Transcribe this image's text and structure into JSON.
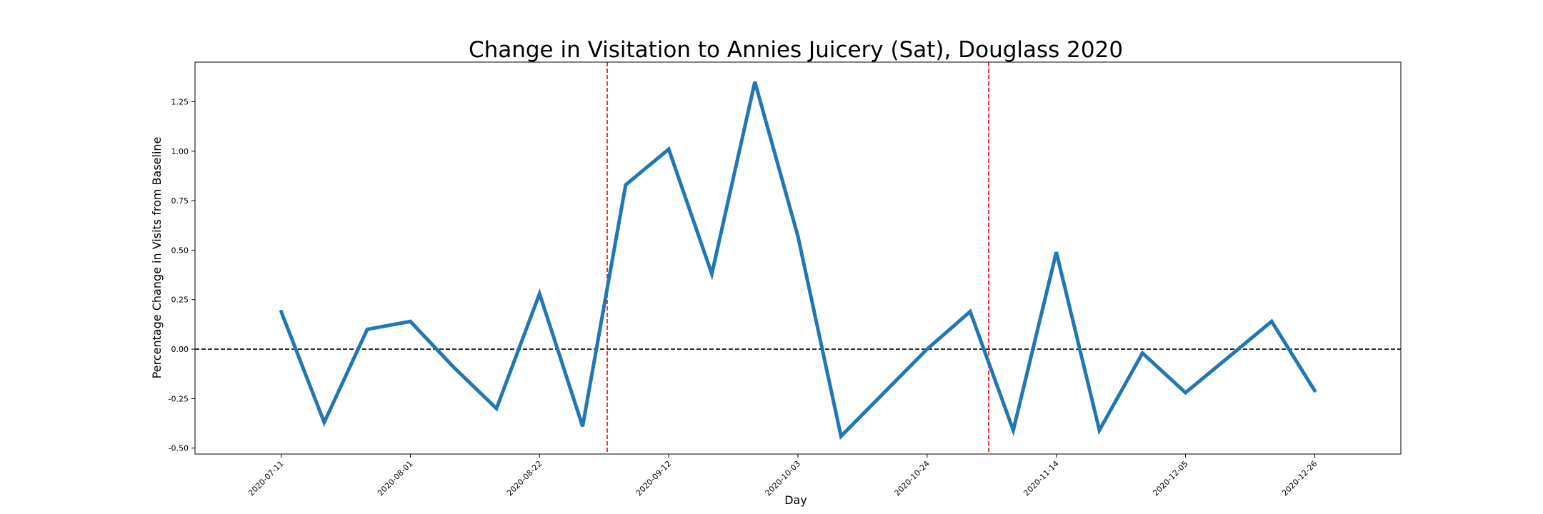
{
  "chart_data": {
    "type": "line",
    "title": "Change in Visitation to Annies Juicery (Sat), Douglass 2020",
    "xlabel": "Day",
    "ylabel": "Percentage Change in Visits from Baseline",
    "x": [
      "2020-07-11",
      "2020-07-18",
      "2020-07-25",
      "2020-08-01",
      "2020-08-08",
      "2020-08-15",
      "2020-08-22",
      "2020-08-29",
      "2020-09-05",
      "2020-09-12",
      "2020-09-19",
      "2020-09-26",
      "2020-10-03",
      "2020-10-10",
      "2020-10-17",
      "2020-10-24",
      "2020-10-31",
      "2020-11-07",
      "2020-11-14",
      "2020-11-21",
      "2020-11-28",
      "2020-12-05",
      "2020-12-12",
      "2020-12-19",
      "2020-12-26"
    ],
    "series": [
      {
        "values": [
          0.19,
          -0.37,
          0.1,
          0.14,
          -0.09,
          -0.3,
          0.28,
          -0.39,
          0.83,
          1.01,
          0.38,
          1.35,
          0.57,
          -0.44,
          -0.22,
          0.0,
          0.19,
          -0.41,
          0.49,
          -0.41,
          -0.02,
          -0.22,
          -0.04,
          0.14,
          -0.21
        ]
      }
    ],
    "xticks": [
      "2020-07-11",
      "2020-08-01",
      "2020-08-22",
      "2020-09-12",
      "2020-10-03",
      "2020-10-24",
      "2020-11-14",
      "2020-12-05",
      "2020-12-26"
    ],
    "yticks": [
      "-0.50",
      "-0.25",
      "0.00",
      "0.25",
      "0.50",
      "0.75",
      "1.00",
      "1.25"
    ],
    "ylim": [
      -0.53,
      1.45
    ],
    "xlim": [
      "2020-06-27",
      "2021-01-09"
    ],
    "reference_lines": {
      "horizontal": {
        "y": 0.0,
        "style": "dashed",
        "color": "#000000"
      },
      "vertical": [
        {
          "x": "2020-09-02",
          "style": "dashed",
          "color": "#ff0000"
        },
        {
          "x": "2020-11-03",
          "style": "dashed",
          "color": "#ff0000"
        }
      ]
    },
    "line_color": "#1f77b4",
    "grid": false,
    "legend": "none"
  }
}
